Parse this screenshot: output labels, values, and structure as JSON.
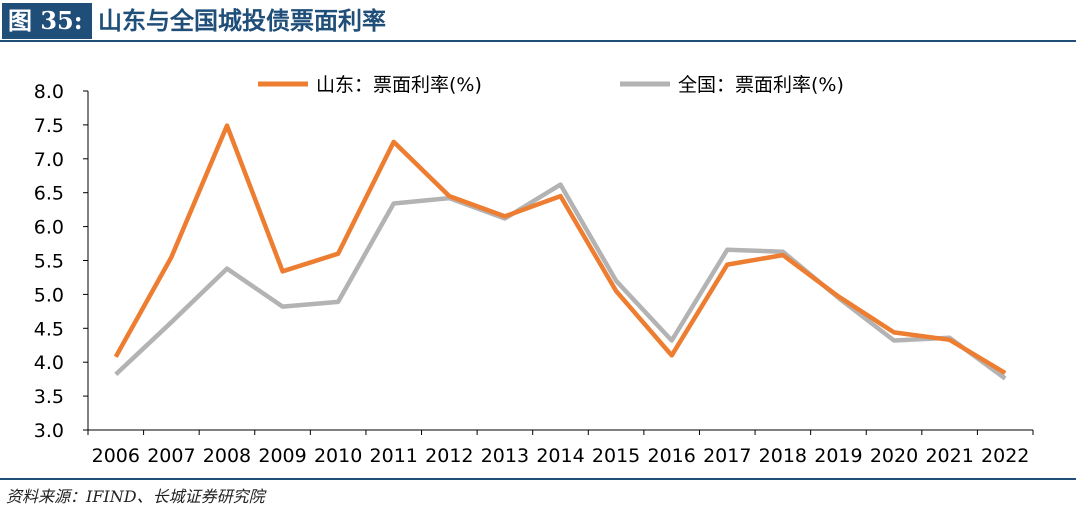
{
  "header": {
    "figure_label": "图 35:",
    "title": "山东与全国城投债票面利率"
  },
  "footer": {
    "source": "资料来源：IFIND、长城证券研究院"
  },
  "colors": {
    "accent": "#1f4e79",
    "series_shandong": "#ed7d31",
    "series_national": "#b3b3b3"
  },
  "chart_data": {
    "type": "line",
    "title": "",
    "xlabel": "",
    "ylabel": "",
    "categories": [
      "2006",
      "2007",
      "2008",
      "2009",
      "2010",
      "2011",
      "2012",
      "2013",
      "2014",
      "2015",
      "2016",
      "2017",
      "2018",
      "2019",
      "2020",
      "2021",
      "2022"
    ],
    "ylim": [
      3.0,
      8.0
    ],
    "yticks": [
      "3.0",
      "3.5",
      "4.0",
      "4.5",
      "5.0",
      "5.5",
      "6.0",
      "6.5",
      "7.0",
      "7.5",
      "8.0"
    ],
    "grid": false,
    "legend_position": "top",
    "series": [
      {
        "name": "山东：票面利率(%)",
        "color": "#ed7d31",
        "values": [
          4.08,
          5.55,
          7.49,
          5.34,
          5.6,
          7.25,
          6.45,
          6.15,
          6.45,
          5.05,
          4.1,
          5.44,
          5.58,
          4.97,
          4.44,
          4.33,
          3.84
        ]
      },
      {
        "name": "全国：票面利率(%)",
        "color": "#b3b3b3",
        "values": [
          3.82,
          4.59,
          5.38,
          4.82,
          4.89,
          6.34,
          6.42,
          6.12,
          6.62,
          5.2,
          4.32,
          5.66,
          5.63,
          4.95,
          4.32,
          4.36,
          3.76
        ]
      }
    ]
  }
}
